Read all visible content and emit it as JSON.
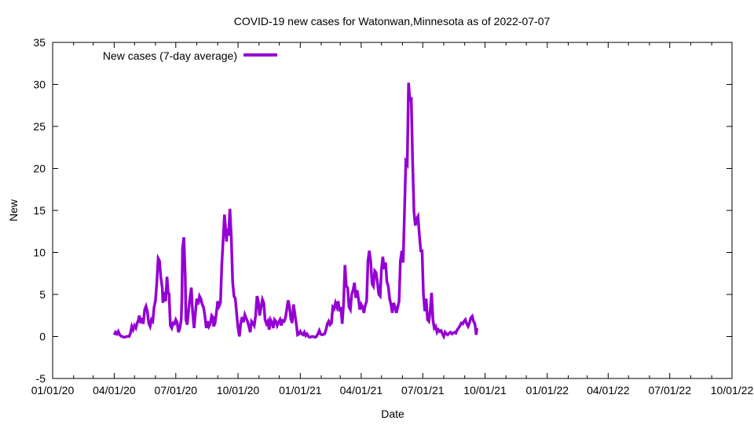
{
  "chart_data": {
    "type": "line",
    "title": "COVID-19 new cases for Watonwan,Minnesota as of 2022-07-07",
    "xlabel": "Date",
    "ylabel": "New",
    "ylim": [
      -5,
      35
    ],
    "yticks": [
      "-5",
      "0",
      "5",
      "10",
      "15",
      "20",
      "25",
      "30",
      "35"
    ],
    "xlim_dates": [
      "01/01/20",
      "10/01/22"
    ],
    "xticks": [
      "01/01/20",
      "04/01/20",
      "07/01/20",
      "10/01/20",
      "01/01/21",
      "04/01/21",
      "07/01/21",
      "10/01/21",
      "01/01/22",
      "04/01/22",
      "07/01/22",
      "10/01/22"
    ],
    "grid": false,
    "legend_position": "top-left",
    "series": [
      {
        "name": "New cases (7-day average)",
        "color": "#9400d3",
        "x_unit": "days since 2020-01-01",
        "points": [
          [
            91,
            0.2
          ],
          [
            93,
            0.5
          ],
          [
            95,
            0.3
          ],
          [
            97,
            0.6
          ],
          [
            99,
            0.2
          ],
          [
            102,
            0.0
          ],
          [
            106,
            -0.1
          ],
          [
            110,
            0.0
          ],
          [
            113,
            0.0
          ],
          [
            115,
            0.4
          ],
          [
            117,
            1.2
          ],
          [
            119,
            0.8
          ],
          [
            121,
            1.3
          ],
          [
            123,
            1.0
          ],
          [
            125,
            1.6
          ],
          [
            127,
            2.0
          ],
          [
            128,
            2.5
          ],
          [
            130,
            1.6
          ],
          [
            132,
            2.2
          ],
          [
            134,
            1.5
          ],
          [
            136,
            3.2
          ],
          [
            138,
            3.6
          ],
          [
            140,
            3.0
          ],
          [
            142,
            1.6
          ],
          [
            144,
            1.2
          ],
          [
            146,
            2.0
          ],
          [
            148,
            1.8
          ],
          [
            150,
            3.5
          ],
          [
            152,
            4.3
          ],
          [
            154,
            6.5
          ],
          [
            156,
            9.3
          ],
          [
            158,
            9.0
          ],
          [
            160,
            7.0
          ],
          [
            162,
            5.8
          ],
          [
            163,
            4.0
          ],
          [
            165,
            5.3
          ],
          [
            167,
            4.2
          ],
          [
            169,
            7.1
          ],
          [
            171,
            5.0
          ],
          [
            172,
            5.2
          ],
          [
            174,
            1.3
          ],
          [
            176,
            1.0
          ],
          [
            178,
            1.6
          ],
          [
            180,
            1.5
          ],
          [
            182,
            2.0
          ],
          [
            184,
            1.7
          ],
          [
            186,
            0.5
          ],
          [
            188,
            1.0
          ],
          [
            190,
            2.0
          ],
          [
            191,
            4.5
          ],
          [
            192,
            10.5
          ],
          [
            194,
            11.8
          ],
          [
            196,
            7.0
          ],
          [
            197,
            2.0
          ],
          [
            199,
            1.4
          ],
          [
            201,
            3.2
          ],
          [
            203,
            4.6
          ],
          [
            205,
            5.8
          ],
          [
            207,
            2.8
          ],
          [
            209,
            1.0
          ],
          [
            211,
            2.8
          ],
          [
            213,
            4.5
          ],
          [
            215,
            3.8
          ],
          [
            217,
            4.8
          ],
          [
            219,
            4.5
          ],
          [
            221,
            3.8
          ],
          [
            223,
            3.5
          ],
          [
            225,
            2.5
          ],
          [
            227,
            1.0
          ],
          [
            229,
            1.8
          ],
          [
            231,
            1.2
          ],
          [
            233,
            1.5
          ],
          [
            235,
            2.5
          ],
          [
            237,
            2.3
          ],
          [
            238,
            1.2
          ],
          [
            240,
            1.6
          ],
          [
            242,
            2.8
          ],
          [
            244,
            4.2
          ],
          [
            246,
            3.6
          ],
          [
            248,
            4.0
          ],
          [
            250,
            8.5
          ],
          [
            252,
            11.5
          ],
          [
            254,
            14.5
          ],
          [
            256,
            12.5
          ],
          [
            257,
            11.3
          ],
          [
            258,
            12.8
          ],
          [
            260,
            12.0
          ],
          [
            262,
            15.2
          ],
          [
            264,
            11.8
          ],
          [
            266,
            6.5
          ],
          [
            268,
            4.8
          ],
          [
            270,
            4.5
          ],
          [
            272,
            2.7
          ],
          [
            274,
            1.0
          ],
          [
            276,
            0.0
          ],
          [
            278,
            1.5
          ],
          [
            280,
            2.3
          ],
          [
            282,
            1.7
          ],
          [
            284,
            2.6
          ],
          [
            286,
            2.2
          ],
          [
            288,
            1.8
          ],
          [
            290,
            1.2
          ],
          [
            292,
            0.5
          ],
          [
            294,
            1.8
          ],
          [
            296,
            1.6
          ],
          [
            298,
            1.3
          ],
          [
            300,
            2.5
          ],
          [
            302,
            4.8
          ],
          [
            304,
            4.2
          ],
          [
            306,
            2.5
          ],
          [
            308,
            3.5
          ],
          [
            310,
            4.4
          ],
          [
            312,
            4.0
          ],
          [
            314,
            2.0
          ],
          [
            316,
            1.5
          ],
          [
            318,
            1.8
          ],
          [
            320,
            0.8
          ],
          [
            322,
            2.0
          ],
          [
            324,
            1.7
          ],
          [
            326,
            1.0
          ],
          [
            328,
            2.0
          ],
          [
            330,
            1.8
          ],
          [
            332,
            1.3
          ],
          [
            334,
            1.7
          ],
          [
            336,
            2.0
          ],
          [
            338,
            1.3
          ],
          [
            340,
            1.9
          ],
          [
            342,
            1.8
          ],
          [
            344,
            2.2
          ],
          [
            346,
            3.2
          ],
          [
            348,
            4.3
          ],
          [
            350,
            3.6
          ],
          [
            352,
            2.1
          ],
          [
            354,
            1.6
          ],
          [
            356,
            3.8
          ],
          [
            358,
            2.7
          ],
          [
            360,
            1.5
          ],
          [
            362,
            0.2
          ],
          [
            364,
            0.3
          ],
          [
            366,
            0.6
          ],
          [
            368,
            0.3
          ],
          [
            370,
            0.2
          ],
          [
            372,
            0.5
          ],
          [
            374,
            0.1
          ],
          [
            376,
            0.3
          ],
          [
            378,
            0.0
          ],
          [
            380,
            -0.1
          ],
          [
            384,
            0.0
          ],
          [
            388,
            -0.1
          ],
          [
            390,
            0.0
          ],
          [
            392,
            0.3
          ],
          [
            394,
            0.7
          ],
          [
            396,
            0.3
          ],
          [
            398,
            0.2
          ],
          [
            402,
            0.3
          ],
          [
            404,
            0.8
          ],
          [
            406,
            1.5
          ],
          [
            408,
            1.8
          ],
          [
            410,
            1.4
          ],
          [
            412,
            1.6
          ],
          [
            414,
            3.5
          ],
          [
            416,
            3.3
          ],
          [
            418,
            4.0
          ],
          [
            420,
            3.5
          ],
          [
            422,
            4.2
          ],
          [
            424,
            3.0
          ],
          [
            426,
            3.5
          ],
          [
            428,
            1.5
          ],
          [
            430,
            4.0
          ],
          [
            432,
            8.5
          ],
          [
            434,
            6.0
          ],
          [
            436,
            5.8
          ],
          [
            438,
            3.5
          ],
          [
            440,
            3.2
          ],
          [
            442,
            5.0
          ],
          [
            444,
            5.5
          ],
          [
            446,
            6.4
          ],
          [
            448,
            4.6
          ],
          [
            450,
            5.5
          ],
          [
            452,
            4.5
          ],
          [
            454,
            3.2
          ],
          [
            456,
            3.8
          ],
          [
            458,
            3.5
          ],
          [
            460,
            2.8
          ],
          [
            462,
            3.7
          ],
          [
            464,
            4.2
          ],
          [
            466,
            9.0
          ],
          [
            468,
            10.2
          ],
          [
            470,
            9.0
          ],
          [
            472,
            6.3
          ],
          [
            474,
            6.0
          ],
          [
            476,
            7.8
          ],
          [
            478,
            7.6
          ],
          [
            480,
            6.5
          ],
          [
            482,
            5.0
          ],
          [
            484,
            4.8
          ],
          [
            486,
            8.0
          ],
          [
            488,
            9.5
          ],
          [
            490,
            8.0
          ],
          [
            492,
            8.8
          ],
          [
            494,
            6.5
          ],
          [
            496,
            6.0
          ],
          [
            498,
            4.5
          ],
          [
            500,
            3.8
          ],
          [
            502,
            2.8
          ],
          [
            504,
            4.0
          ],
          [
            506,
            3.5
          ],
          [
            508,
            2.8
          ],
          [
            510,
            3.5
          ],
          [
            512,
            4.2
          ],
          [
            514,
            9.0
          ],
          [
            516,
            10.2
          ],
          [
            518,
            8.8
          ],
          [
            520,
            14.8
          ],
          [
            522,
            20.8
          ],
          [
            524,
            20.5
          ],
          [
            526,
            30.2
          ],
          [
            528,
            28.0
          ],
          [
            530,
            28.5
          ],
          [
            532,
            21.0
          ],
          [
            534,
            14.8
          ],
          [
            536,
            13.2
          ],
          [
            538,
            14.0
          ],
          [
            540,
            14.3
          ],
          [
            542,
            12.0
          ],
          [
            544,
            10.2
          ],
          [
            546,
            10.2
          ],
          [
            548,
            5.0
          ],
          [
            550,
            3.0
          ],
          [
            552,
            4.5
          ],
          [
            554,
            2.0
          ],
          [
            556,
            1.8
          ],
          [
            558,
            3.0
          ],
          [
            560,
            5.2
          ],
          [
            562,
            2.0
          ],
          [
            564,
            1.0
          ],
          [
            566,
            1.2
          ],
          [
            568,
            0.5
          ],
          [
            570,
            0.8
          ],
          [
            572,
            0.6
          ],
          [
            574,
            0.7
          ],
          [
            576,
            0.3
          ],
          [
            578,
            0.0
          ],
          [
            580,
            0.5
          ],
          [
            582,
            0.3
          ],
          [
            584,
            0.2
          ],
          [
            586,
            0.4
          ],
          [
            588,
            0.5
          ],
          [
            590,
            0.3
          ],
          [
            592,
            0.4
          ],
          [
            594,
            0.5
          ],
          [
            596,
            0.4
          ],
          [
            598,
            0.8
          ],
          [
            600,
            1.0
          ],
          [
            602,
            1.3
          ],
          [
            604,
            1.6
          ],
          [
            606,
            1.5
          ],
          [
            608,
            1.8
          ],
          [
            610,
            2.0
          ],
          [
            612,
            1.5
          ],
          [
            614,
            1.2
          ],
          [
            616,
            1.6
          ],
          [
            618,
            2.2
          ],
          [
            620,
            2.4
          ],
          [
            622,
            1.8
          ],
          [
            624,
            1.5
          ],
          [
            626,
            0.2
          ],
          [
            627,
            1.0
          ]
        ]
      }
    ]
  }
}
